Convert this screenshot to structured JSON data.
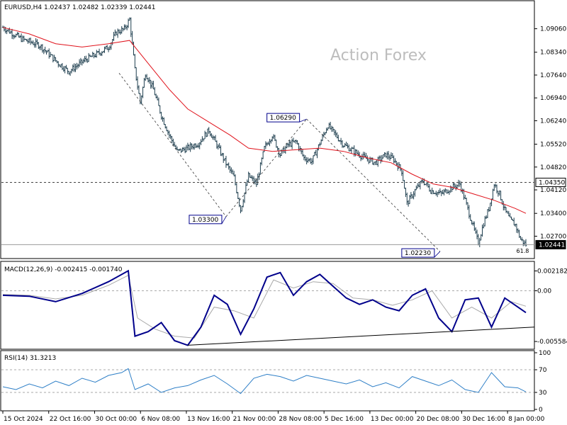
{
  "window": {
    "header": "EURUSD,H4  1.02437 1.02482 1.02339 1.02441",
    "watermark": "Action Forex"
  },
  "colors": {
    "candle": "#1f3f4f",
    "ma": "#e0121b",
    "macd": "#00008b",
    "signal": "#a8a8a8",
    "rsi": "#2e7fc7",
    "label_border": "#00008b",
    "dashed": "#333333"
  },
  "chart_data": [
    {
      "type": "candlestick",
      "panel": "price",
      "symbol": "EURUSD",
      "timeframe": "H4",
      "ohlc_last": {
        "open": 1.02437,
        "high": 1.02482,
        "low": 1.02339,
        "close": 1.02441
      },
      "ylim": [
        1.0208,
        1.0955
      ],
      "y_ticks": [
        "1.09060",
        "1.08340",
        "1.07640",
        "1.06940",
        "1.06240",
        "1.05520",
        "1.04820",
        "1.04120",
        "1.03400",
        "1.02700"
      ],
      "x_ticks": [
        "15 Oct 2024",
        "22 Oct 16:00",
        "30 Oct 00:00",
        "6 Nov 08:00",
        "13 Nov 16:00",
        "21 Nov 00:00",
        "28 Nov 08:00",
        "5 Dec 16:00",
        "13 Dec 00:00",
        "20 Dec 08:00",
        "30 Dec 16:00",
        "8 Jan 00:00"
      ],
      "close_path": [
        [
          0,
          1.091
        ],
        [
          14,
          1.0875
        ],
        [
          28,
          1.0855
        ],
        [
          42,
          1.08
        ],
        [
          50,
          1.0775
        ],
        [
          62,
          1.081
        ],
        [
          72,
          1.083
        ],
        [
          80,
          1.085
        ],
        [
          86,
          1.0895
        ],
        [
          92,
          1.0905
        ],
        [
          96,
          1.0935
        ],
        [
          100,
          1.078
        ],
        [
          104,
          1.068
        ],
        [
          108,
          1.077
        ],
        [
          114,
          1.072
        ],
        [
          120,
          1.064
        ],
        [
          126,
          1.058
        ],
        [
          132,
          1.053
        ],
        [
          140,
          1.054
        ],
        [
          148,
          1.0555
        ],
        [
          156,
          1.0595
        ],
        [
          162,
          1.055
        ],
        [
          168,
          1.05
        ],
        [
          175,
          1.045
        ],
        [
          180,
          1.035
        ],
        [
          186,
          1.0455
        ],
        [
          192,
          1.043
        ],
        [
          198,
          1.054
        ],
        [
          204,
          1.058
        ],
        [
          210,
          1.052
        ],
        [
          216,
          1.055
        ],
        [
          222,
          1.056
        ],
        [
          228,
          1.051
        ],
        [
          234,
          1.05
        ],
        [
          240,
          1.0555
        ],
        [
          246,
          1.061
        ],
        [
          252,
          1.058
        ],
        [
          258,
          1.055
        ],
        [
          266,
          1.053
        ],
        [
          274,
          1.051
        ],
        [
          282,
          1.0495
        ],
        [
          290,
          1.052
        ],
        [
          296,
          1.0505
        ],
        [
          302,
          1.047
        ],
        [
          306,
          1.037
        ],
        [
          312,
          1.041
        ],
        [
          318,
          1.044
        ],
        [
          324,
          1.041
        ],
        [
          332,
          1.04
        ],
        [
          340,
          1.042
        ],
        [
          346,
          1.043
        ],
        [
          350,
          1.038
        ],
        [
          356,
          1.03
        ],
        [
          360,
          1.025
        ],
        [
          364,
          1.031
        ],
        [
          368,
          1.0355
        ],
        [
          372,
          1.043
        ],
        [
          376,
          1.04
        ],
        [
          380,
          1.035
        ],
        [
          384,
          1.032
        ],
        [
          388,
          1.0305
        ],
        [
          392,
          1.026
        ],
        [
          396,
          1.0244
        ]
      ],
      "ma_path": [
        [
          0,
          1.091
        ],
        [
          20,
          1.089
        ],
        [
          40,
          1.086
        ],
        [
          60,
          1.085
        ],
        [
          80,
          1.086
        ],
        [
          96,
          1.087
        ],
        [
          110,
          1.08
        ],
        [
          126,
          1.072
        ],
        [
          140,
          1.066
        ],
        [
          156,
          1.062
        ],
        [
          172,
          1.058
        ],
        [
          186,
          1.054
        ],
        [
          204,
          1.053
        ],
        [
          222,
          1.0535
        ],
        [
          240,
          1.054
        ],
        [
          258,
          1.053
        ],
        [
          276,
          1.051
        ],
        [
          294,
          1.0495
        ],
        [
          310,
          1.046
        ],
        [
          326,
          1.043
        ],
        [
          340,
          1.042
        ],
        [
          356,
          1.04
        ],
        [
          372,
          1.038
        ],
        [
          388,
          1.0355
        ],
        [
          396,
          1.034
        ]
      ],
      "levels": [
        {
          "value": 1.0435,
          "label": "1.04350",
          "style": "dashed"
        },
        {
          "value": 1.0244,
          "label": "1.02441",
          "style": "current"
        }
      ],
      "annotations": [
        {
          "label": "1.03300",
          "value": 1.033
        },
        {
          "label": "1.06290",
          "value": 1.0629
        },
        {
          "label": "1.02230",
          "value": 1.0223
        },
        {
          "label": "61.8",
          "value": 1.0223
        }
      ]
    },
    {
      "type": "line",
      "panel": "macd",
      "title": "MACD(12,26,9) -0.002415 -0.001740",
      "ylim": [
        -0.0062,
        0.003
      ],
      "y_ticks": [
        "0.002182",
        "0.00",
        "-0.005584"
      ],
      "series": [
        {
          "name": "MACD",
          "points": [
            [
              0,
              -0.0005
            ],
            [
              20,
              -0.0006
            ],
            [
              40,
              -0.0012
            ],
            [
              60,
              -0.0003
            ],
            [
              80,
              0.001
            ],
            [
              95,
              0.0022
            ],
            [
              100,
              -0.005
            ],
            [
              110,
              -0.0045
            ],
            [
              120,
              -0.0035
            ],
            [
              130,
              -0.0055
            ],
            [
              140,
              -0.006
            ],
            [
              150,
              -0.004
            ],
            [
              160,
              -0.0005
            ],
            [
              170,
              -0.0015
            ],
            [
              180,
              -0.0048
            ],
            [
              190,
              -0.002
            ],
            [
              200,
              0.0015
            ],
            [
              210,
              0.002
            ],
            [
              220,
              -0.0005
            ],
            [
              230,
              0.001
            ],
            [
              240,
              0.0018
            ],
            [
              250,
              0.0005
            ],
            [
              260,
              -0.0008
            ],
            [
              270,
              -0.0015
            ],
            [
              280,
              -0.001
            ],
            [
              290,
              -0.0018
            ],
            [
              300,
              -0.0022
            ],
            [
              310,
              -0.0005
            ],
            [
              320,
              0.0002
            ],
            [
              330,
              -0.003
            ],
            [
              340,
              -0.0045
            ],
            [
              350,
              -0.001
            ],
            [
              360,
              -0.0008
            ],
            [
              370,
              -0.004
            ],
            [
              380,
              -0.0008
            ],
            [
              390,
              -0.0018
            ],
            [
              396,
              -0.0024
            ]
          ]
        },
        {
          "name": "Signal",
          "points": [
            [
              0,
              -0.0004
            ],
            [
              20,
              -0.0005
            ],
            [
              40,
              -0.0009
            ],
            [
              60,
              -0.0005
            ],
            [
              80,
              0.0006
            ],
            [
              95,
              0.0017
            ],
            [
              102,
              -0.003
            ],
            [
              115,
              -0.0042
            ],
            [
              130,
              -0.005
            ],
            [
              145,
              -0.0052
            ],
            [
              160,
              -0.0018
            ],
            [
              175,
              -0.0022
            ],
            [
              190,
              -0.003
            ],
            [
              205,
              0.0012
            ],
            [
              220,
              0.0003
            ],
            [
              235,
              0.001
            ],
            [
              250,
              0.0008
            ],
            [
              265,
              -0.0008
            ],
            [
              280,
              -0.001
            ],
            [
              295,
              -0.0016
            ],
            [
              310,
              -0.001
            ],
            [
              325,
              0.0
            ],
            [
              340,
              -0.003
            ],
            [
              355,
              -0.0018
            ],
            [
              370,
              -0.003
            ],
            [
              385,
              -0.0012
            ],
            [
              396,
              -0.0017
            ]
          ]
        }
      ]
    },
    {
      "type": "line",
      "panel": "rsi",
      "title": "RSI(14) 31.3213",
      "ylim": [
        0,
        100
      ],
      "y_ticks": [
        "100",
        "70",
        "30",
        "0"
      ],
      "levels": [
        70,
        30
      ],
      "series": [
        {
          "name": "RSI",
          "points": [
            [
              0,
              40
            ],
            [
              10,
              35
            ],
            [
              20,
              45
            ],
            [
              30,
              38
            ],
            [
              40,
              50
            ],
            [
              50,
              42
            ],
            [
              60,
              55
            ],
            [
              70,
              48
            ],
            [
              80,
              60
            ],
            [
              90,
              65
            ],
            [
              95,
              72
            ],
            [
              100,
              35
            ],
            [
              110,
              45
            ],
            [
              120,
              30
            ],
            [
              130,
              38
            ],
            [
              140,
              42
            ],
            [
              150,
              52
            ],
            [
              160,
              60
            ],
            [
              170,
              45
            ],
            [
              180,
              28
            ],
            [
              190,
              55
            ],
            [
              200,
              62
            ],
            [
              210,
              58
            ],
            [
              220,
              50
            ],
            [
              230,
              60
            ],
            [
              240,
              55
            ],
            [
              250,
              50
            ],
            [
              260,
              45
            ],
            [
              270,
              52
            ],
            [
              280,
              40
            ],
            [
              290,
              47
            ],
            [
              300,
              38
            ],
            [
              310,
              58
            ],
            [
              320,
              50
            ],
            [
              330,
              42
            ],
            [
              340,
              52
            ],
            [
              350,
              35
            ],
            [
              360,
              30
            ],
            [
              370,
              65
            ],
            [
              380,
              40
            ],
            [
              390,
              38
            ],
            [
              396,
              31
            ]
          ]
        }
      ]
    }
  ]
}
